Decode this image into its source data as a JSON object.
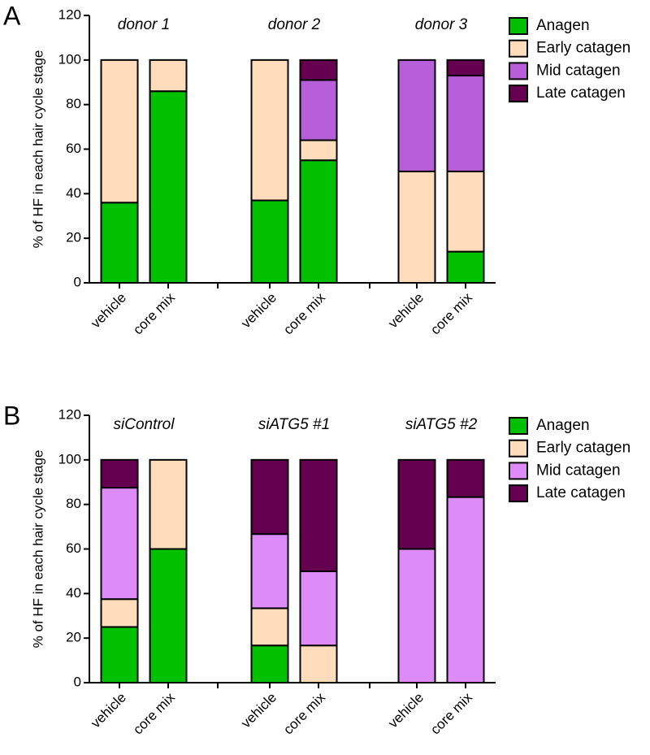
{
  "chart_data": [
    {
      "panel": "A",
      "type": "bar",
      "stacked": true,
      "ylabel": "% of HF in each hair cycle stage",
      "groups": [
        "donor 1",
        "donor 2",
        "donor 3"
      ],
      "categories": [
        "vehicle",
        "core mix",
        "vehicle",
        "core mix",
        "vehicle",
        "core mix"
      ],
      "series": [
        {
          "name": "Anagen",
          "color": "#00c000",
          "values": [
            36,
            86,
            37,
            55,
            0,
            14
          ]
        },
        {
          "name": "Early catagen",
          "color": "#ffdcbb",
          "values": [
            64,
            14,
            63,
            9,
            50,
            36
          ]
        },
        {
          "name": "Mid catagen",
          "color": "#b65fd8",
          "values": [
            0,
            0,
            0,
            27,
            50,
            43
          ]
        },
        {
          "name": "Late catagen",
          "color": "#650050",
          "values": [
            0,
            0,
            0,
            9,
            0,
            7
          ]
        }
      ],
      "ylim": [
        0,
        120
      ],
      "yticks": [
        0,
        20,
        40,
        60,
        80,
        100,
        120
      ]
    },
    {
      "panel": "B",
      "type": "bar",
      "stacked": true,
      "ylabel": "% of HF in each hair cycle stage",
      "groups": [
        "siControl",
        "siATG5 #1",
        "siATG5 #2"
      ],
      "categories": [
        "vehicle",
        "core mix",
        "vehicle",
        "core mix",
        "vehicle",
        "core mix"
      ],
      "series": [
        {
          "name": "Anagen",
          "color": "#00c000",
          "values": [
            25,
            60,
            16.7,
            0,
            0,
            0
          ]
        },
        {
          "name": "Early catagen",
          "color": "#ffdcbb",
          "values": [
            12.5,
            40,
            16.7,
            16.7,
            0,
            0
          ]
        },
        {
          "name": "Mid catagen",
          "color": "#dd8cf7",
          "values": [
            50,
            0,
            33.3,
            33.3,
            60,
            83.3
          ]
        },
        {
          "name": "Late catagen",
          "color": "#650050",
          "values": [
            12.5,
            0,
            33.3,
            50,
            40,
            16.7
          ]
        }
      ],
      "ylim": [
        0,
        120
      ],
      "yticks": [
        0,
        20,
        40,
        60,
        80,
        100,
        120
      ]
    }
  ]
}
